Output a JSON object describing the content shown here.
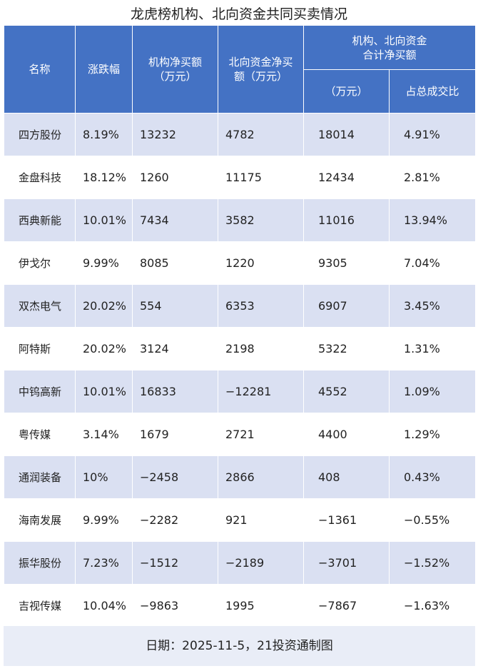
{
  "title": "龙虎榜机构、北向资金共同买卖情况",
  "headers": {
    "name": "名称",
    "change": "涨跌幅",
    "inst_line1": "机构净买额",
    "inst_line2": "（万元）",
    "north_line1": "北向资金净买",
    "north_line2": "额（万元）",
    "combined_line1": "机构、北向资金",
    "combined_line2": "合计净买额",
    "combined_amount": "（万元）",
    "combined_share": "占总成交比"
  },
  "rows": [
    {
      "name": "四方股份",
      "change": "8.19%",
      "inst": "13232",
      "north": "4782",
      "total": "18014",
      "share": "4.91%"
    },
    {
      "name": "金盘科技",
      "change": "18.12%",
      "inst": "1260",
      "north": "11175",
      "total": "12434",
      "share": "2.81%"
    },
    {
      "name": "西典新能",
      "change": "10.01%",
      "inst": "7434",
      "north": "3582",
      "total": "11016",
      "share": "13.94%"
    },
    {
      "name": "伊戈尔",
      "change": "9.99%",
      "inst": "8085",
      "north": "1220",
      "total": "9305",
      "share": "7.04%"
    },
    {
      "name": "双杰电气",
      "change": "20.02%",
      "inst": "554",
      "north": "6353",
      "total": "6907",
      "share": "3.45%"
    },
    {
      "name": "阿特斯",
      "change": "20.02%",
      "inst": "3124",
      "north": "2198",
      "total": "5322",
      "share": "1.31%"
    },
    {
      "name": "中钨高新",
      "change": "10.01%",
      "inst": "16833",
      "north": "-12281",
      "total": "4552",
      "share": "1.09%"
    },
    {
      "name": "粤传媒",
      "change": "3.14%",
      "inst": "1679",
      "north": "2721",
      "total": "4400",
      "share": "1.29%"
    },
    {
      "name": "通润装备",
      "change": "10%",
      "inst": "-2458",
      "north": "2866",
      "total": "408",
      "share": "0.43%"
    },
    {
      "name": "海南发展",
      "change": "9.99%",
      "inst": "-2282",
      "north": "921",
      "total": "-1361",
      "share": "-0.55%"
    },
    {
      "name": "振华股份",
      "change": "7.23%",
      "inst": "-1512",
      "north": "-2189",
      "total": "-3701",
      "share": "-1.52%"
    },
    {
      "name": "吉视传媒",
      "change": "10.04%",
      "inst": "-9863",
      "north": "1995",
      "total": "-7867",
      "share": "-1.63%"
    }
  ],
  "footer": "日期：2025-11-5，21投资通制图",
  "colors": {
    "header_bg": "#4472c4",
    "stripe_bg": "#dae0f2",
    "footer_bg": "#e9edf7"
  }
}
